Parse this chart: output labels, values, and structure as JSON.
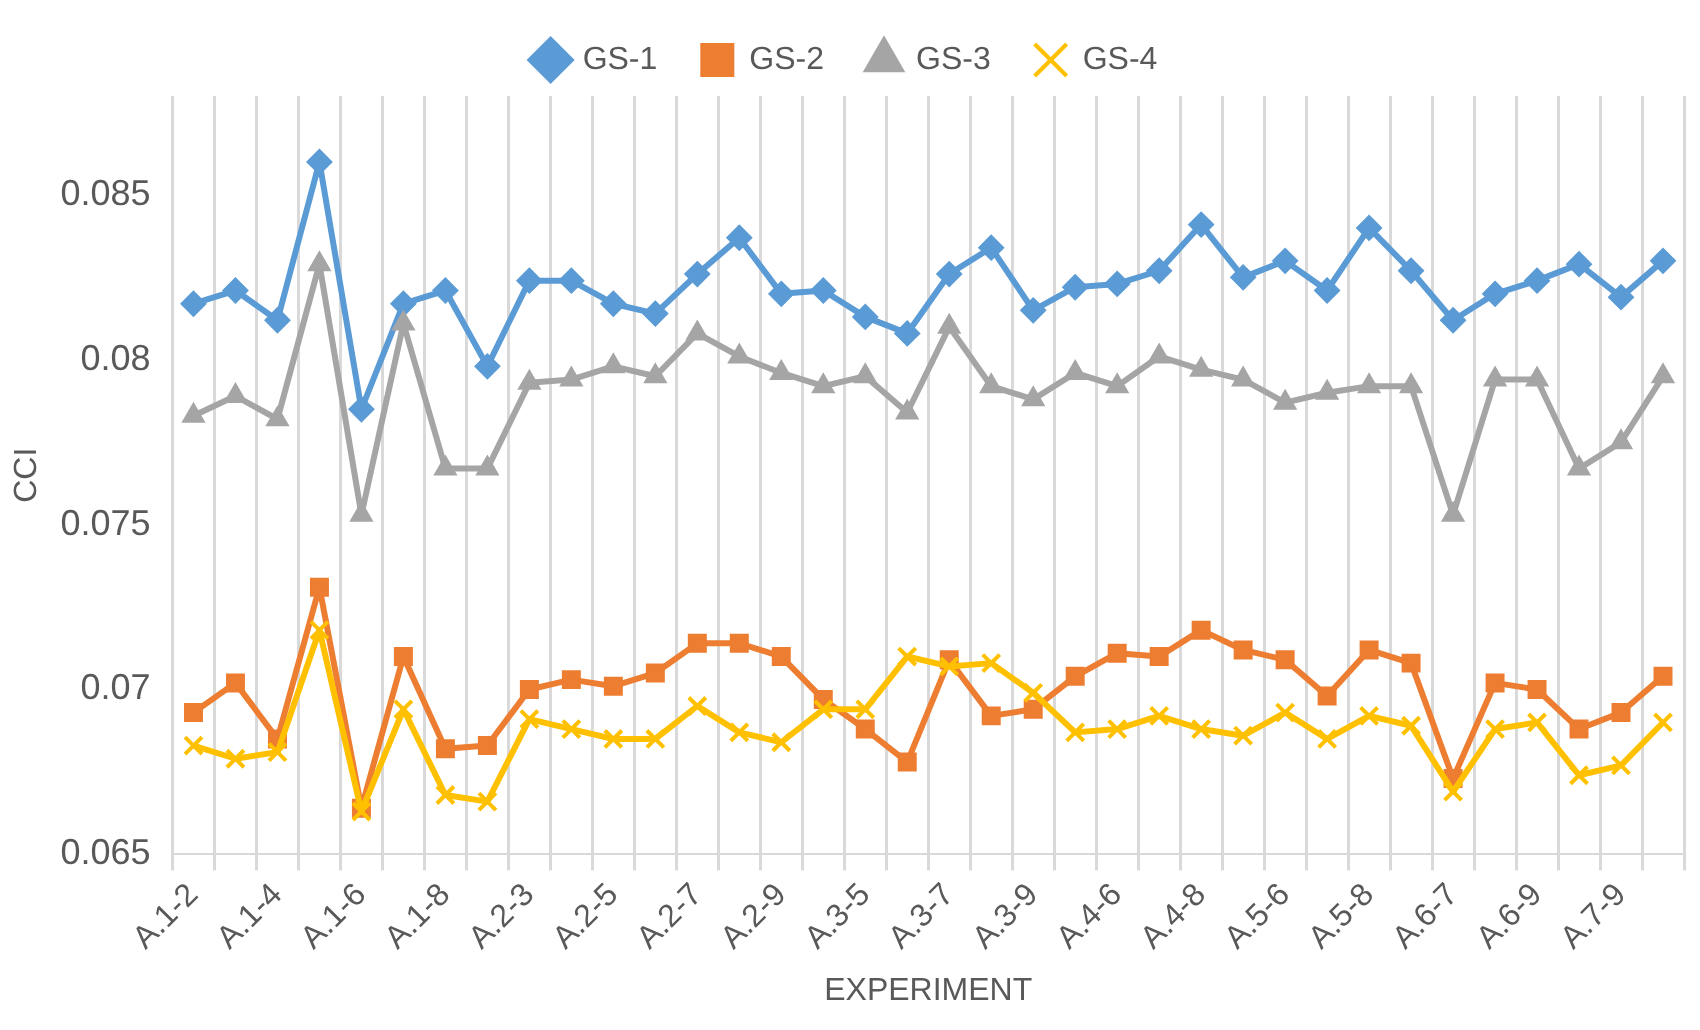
{
  "chart_data": {
    "type": "line",
    "xlabel": "EXPERIMENT",
    "ylabel": "CCI",
    "categories": [
      "A.1-2",
      null,
      "A.1-4",
      null,
      "A.1-6",
      null,
      "A.1-8",
      null,
      "A.2-3",
      null,
      "A.2-5",
      null,
      "A.2-7",
      null,
      "A.2-9",
      null,
      "A.3-5",
      null,
      "A.3-7",
      null,
      "A.3-9",
      null,
      "A.4-6",
      null,
      "A.4-8",
      null,
      "A.5-6",
      null,
      "A.5-8",
      null,
      "A.6-7",
      null,
      "A.6-9",
      null,
      "A.7-9",
      null
    ],
    "series": [
      {
        "name": "GS-1",
        "color": "#5b9bd5",
        "marker": "diamond",
        "values": [
          0.0817,
          0.0821,
          0.0812,
          0.086,
          0.0785,
          0.0817,
          0.0821,
          0.0798,
          0.0824,
          0.0824,
          0.0817,
          0.0814,
          0.0826,
          0.0837,
          0.082,
          0.0821,
          0.0813,
          0.0808,
          0.0826,
          0.0834,
          0.0815,
          0.0822,
          0.0823,
          0.0827,
          0.0841,
          0.0825,
          0.083,
          0.0821,
          0.084,
          0.0827,
          0.0812,
          0.082,
          0.0824,
          0.0829,
          0.0819,
          0.083
        ]
      },
      {
        "name": "GS-2",
        "color": "#ed7d31",
        "marker": "square",
        "values": [
          0.0693,
          0.0702,
          0.0685,
          0.0731,
          0.0664,
          0.071,
          0.0682,
          0.0683,
          0.07,
          0.0703,
          0.0701,
          0.0705,
          0.0714,
          0.0714,
          0.071,
          0.0697,
          0.0688,
          0.0678,
          0.0709,
          0.0692,
          0.0694,
          0.0704,
          0.0711,
          0.071,
          0.0718,
          0.0712,
          0.0709,
          0.0698,
          0.0712,
          0.0708,
          0.0673,
          0.0702,
          0.07,
          0.0688,
          0.0693,
          0.0704
        ]
      },
      {
        "name": "GS-3",
        "color": "#a5a5a5",
        "marker": "triangle",
        "values": [
          0.0783,
          0.0789,
          0.0782,
          0.0829,
          0.0753,
          0.0811,
          0.0767,
          0.0767,
          0.0793,
          0.0794,
          0.0798,
          0.0795,
          0.0808,
          0.0801,
          0.0796,
          0.0792,
          0.0795,
          0.0784,
          0.081,
          0.0792,
          0.0788,
          0.0796,
          0.0792,
          0.0801,
          0.0797,
          0.0794,
          0.0787,
          0.079,
          0.0792,
          0.0792,
          0.0753,
          0.0794,
          0.0794,
          0.0767,
          0.0775,
          0.0795
        ]
      },
      {
        "name": "GS-4",
        "color": "#ffc000",
        "marker": "cross",
        "values": [
          0.0683,
          0.0679,
          0.0681,
          0.0718,
          0.0663,
          0.0694,
          0.0668,
          0.0666,
          0.0691,
          0.0688,
          0.0685,
          0.0685,
          0.0695,
          0.0687,
          0.0684,
          0.0694,
          0.0694,
          0.071,
          0.0707,
          0.0708,
          0.0699,
          0.0687,
          0.0688,
          0.0692,
          0.0688,
          0.0686,
          0.0693,
          0.0685,
          0.0692,
          0.0689,
          0.0669,
          0.0688,
          0.069,
          0.0674,
          0.0677,
          0.069
        ]
      }
    ],
    "ylim": [
      0.065,
      0.088
    ],
    "yticks": [
      0.065,
      0.07,
      0.075,
      0.08,
      0.085
    ],
    "grid": "x",
    "legend": "top",
    "line_style": "solid"
  }
}
